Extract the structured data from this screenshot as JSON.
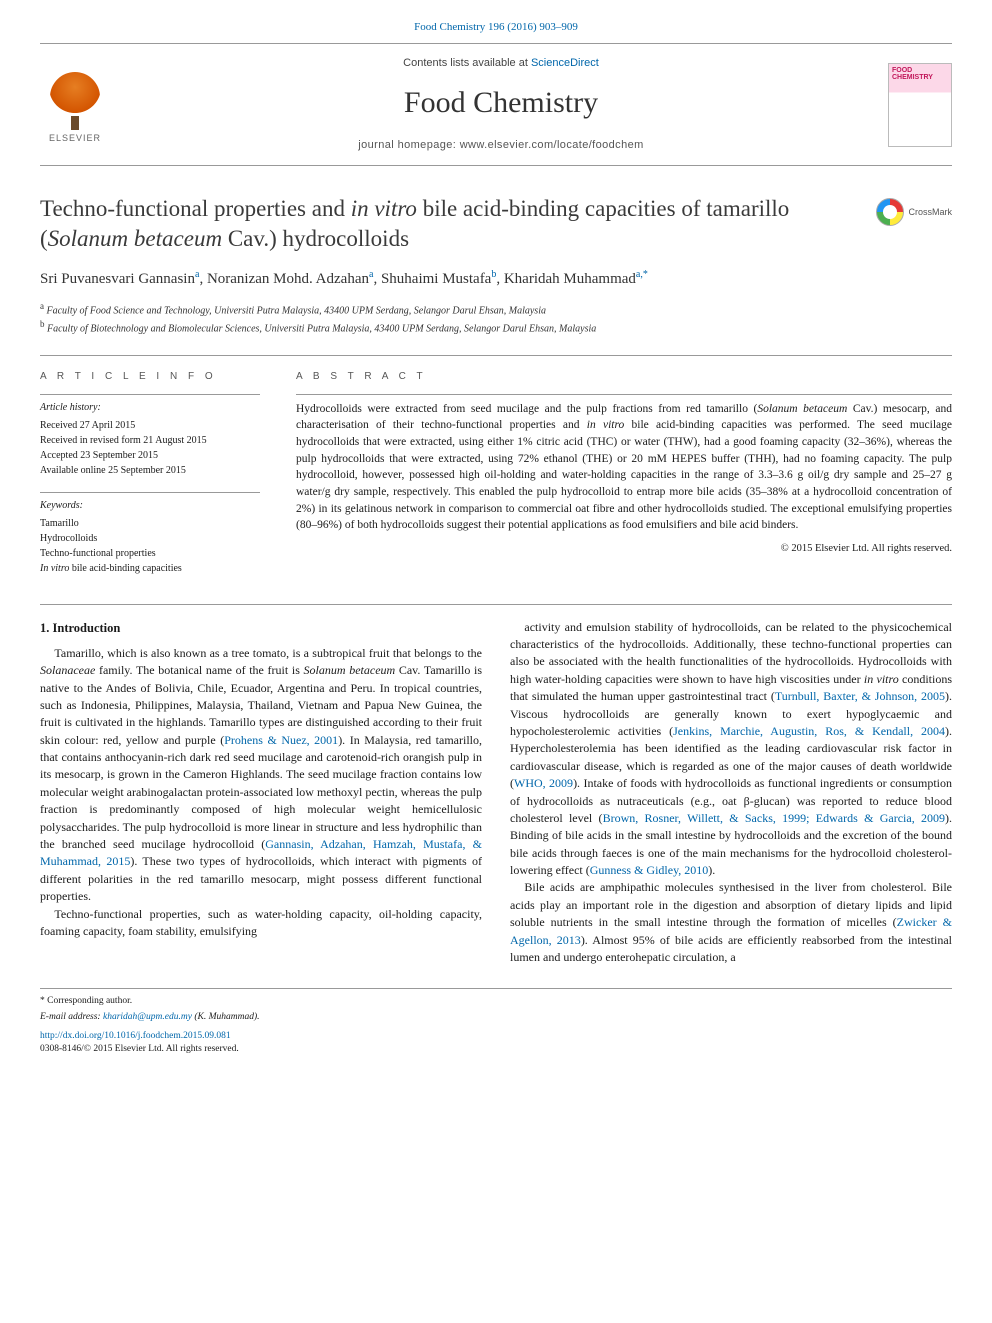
{
  "citation": "Food Chemistry 196 (2016) 903–909",
  "masthead": {
    "contents_prefix": "Contents lists available at ",
    "contents_link": "ScienceDirect",
    "journal": "Food Chemistry",
    "homepage_label": "journal homepage: ",
    "homepage_url": "www.elsevier.com/locate/foodchem",
    "publisher_label": "ELSEVIER",
    "cover_text_top": "FOOD",
    "cover_text_bottom": "CHEMISTRY"
  },
  "title_html": "Techno-functional properties and <em>in vitro</em> bile acid-binding capacities of tamarillo (<em>Solanum betaceum</em> Cav.) hydrocolloids",
  "crossmark_label": "CrossMark",
  "authors_html": "Sri Puvanesvari Gannasin<sup>a</sup>, Noranizan Mohd. Adzahan<sup>a</sup>, Shuhaimi Mustafa<sup>b</sup>, Kharidah Muhammad<sup>a,*</sup>",
  "affiliations": [
    {
      "sup": "a",
      "text": "Faculty of Food Science and Technology, Universiti Putra Malaysia, 43400 UPM Serdang, Selangor Darul Ehsan, Malaysia"
    },
    {
      "sup": "b",
      "text": "Faculty of Biotechnology and Biomolecular Sciences, Universiti Putra Malaysia, 43400 UPM Serdang, Selangor Darul Ehsan, Malaysia"
    }
  ],
  "info": {
    "heading_info": "A R T I C L E   I N F O",
    "history_label": "Article history:",
    "history": [
      "Received 27 April 2015",
      "Received in revised form 21 August 2015",
      "Accepted 23 September 2015",
      "Available online 25 September 2015"
    ],
    "keywords_label": "Keywords:",
    "keywords_html": [
      "Tamarillo",
      "Hydrocolloids",
      "Techno-functional properties",
      "<em>In vitro</em> bile acid-binding capacities"
    ]
  },
  "abstract": {
    "heading": "A B S T R A C T",
    "text_html": "Hydrocolloids were extracted from seed mucilage and the pulp fractions from red tamarillo (<em>Solanum betaceum</em> Cav.) mesocarp, and characterisation of their techno-functional properties and <em>in vitro</em> bile acid-binding capacities was performed. The seed mucilage hydrocolloids that were extracted, using either 1% citric acid (THC) or water (THW), had a good foaming capacity (32–36%), whereas the pulp hydrocolloids that were extracted, using 72% ethanol (THE) or 20 mM HEPES buffer (THH), had no foaming capacity. The pulp hydrocolloid, however, possessed high oil-holding and water-holding capacities in the range of 3.3–3.6 g oil/g dry sample and 25–27 g water/g dry sample, respectively. This enabled the pulp hydrocolloid to entrap more bile acids (35–38% at a hydrocolloid concentration of 2%) in its gelatinous network in comparison to commercial oat fibre and other hydrocolloids studied. The exceptional emulsifying properties (80–96%) of both hydrocolloids suggest their potential applications as food emulsifiers and bile acid binders.",
    "copyright": "© 2015 Elsevier Ltd. All rights reserved."
  },
  "body": {
    "section_heading": "1. Introduction",
    "para1_html": "Tamarillo, which is also known as a tree tomato, is a subtropical fruit that belongs to the <em>Solanaceae</em> family. The botanical name of the fruit is <em>Solanum betaceum</em> Cav. Tamarillo is native to the Andes of Bolivia, Chile, Ecuador, Argentina and Peru. In tropical countries, such as Indonesia, Philippines, Malaysia, Thailand, Vietnam and Papua New Guinea, the fruit is cultivated in the highlands. Tamarillo types are distinguished according to their fruit skin colour: red, yellow and purple (<a class=\"ref\" href=\"#\">Prohens &amp; Nuez, 2001</a>). In Malaysia, red tamarillo, that contains anthocyanin-rich dark red seed mucilage and carotenoid-rich orangish pulp in its mesocarp, is grown in the Cameron Highlands. The seed mucilage fraction contains low molecular weight arabinogalactan protein-associated low methoxyl pectin, whereas the pulp fraction is predominantly composed of high molecular weight hemicellulosic polysaccharides. The pulp hydrocolloid is more linear in structure and less hydrophilic than the branched seed mucilage hydrocolloid (<a class=\"ref\" href=\"#\">Gannasin, Adzahan, Hamzah, Mustafa, &amp; Muhammad, 2015</a>). These two types of hydrocolloids, which interact with pigments of different polarities in the red tamarillo mesocarp, might possess different functional properties.",
    "para2_html": "Techno-functional properties, such as water-holding capacity, oil-holding capacity, foaming capacity, foam stability, emulsifying",
    "para3_html": "activity and emulsion stability of hydrocolloids, can be related to the physicochemical characteristics of the hydrocolloids. Additionally, these techno-functional properties can also be associated with the health functionalities of the hydrocolloids. Hydrocolloids with high water-holding capacities were shown to have high viscosities under <em>in vitro</em> conditions that simulated the human upper gastrointestinal tract (<a class=\"ref\" href=\"#\">Turnbull, Baxter, &amp; Johnson, 2005</a>). Viscous hydrocolloids are generally known to exert hypoglycaemic and hypocholesterolemic activities (<a class=\"ref\" href=\"#\">Jenkins, Marchie, Augustin, Ros, &amp; Kendall, 2004</a>). Hypercholesterolemia has been identified as the leading cardiovascular risk factor in cardiovascular disease, which is regarded as one of the major causes of death worldwide (<a class=\"ref\" href=\"#\">WHO, 2009</a>). Intake of foods with hydrocolloids as functional ingredients or consumption of hydrocolloids as nutraceuticals (e.g., oat β-glucan) was reported to reduce blood cholesterol level (<a class=\"ref\" href=\"#\">Brown, Rosner, Willett, &amp; Sacks, 1999; Edwards &amp; Garcia, 2009</a>). Binding of bile acids in the small intestine by hydrocolloids and the excretion of the bound bile acids through faeces is one of the main mechanisms for the hydrocolloid cholesterol-lowering effect (<a class=\"ref\" href=\"#\">Gunness &amp; Gidley, 2010</a>).",
    "para4_html": "Bile acids are amphipathic molecules synthesised in the liver from cholesterol. Bile acids play an important role in the digestion and absorption of dietary lipids and lipid soluble nutrients in the small intestine through the formation of micelles (<a class=\"ref\" href=\"#\">Zwicker &amp; Agellon, 2013</a>). Almost 95% of bile acids are efficiently reabsorbed from the intestinal lumen and undergo enterohepatic circulation, a"
  },
  "footer": {
    "corr_marker": "* Corresponding author.",
    "email_label": "E-mail address: ",
    "email": "kharidah@upm.edu.my",
    "email_of": " (K. Muhammad).",
    "doi_url": "http://dx.doi.org/10.1016/j.foodchem.2015.09.081",
    "issn_line": "0308-8146/© 2015 Elsevier Ltd. All rights reserved."
  },
  "colors": {
    "link": "#0066aa",
    "rule": "#999999",
    "text": "#1a1a1a",
    "elsevier_orange": "#e67e22",
    "cover_pink": "#fcd8e8"
  }
}
